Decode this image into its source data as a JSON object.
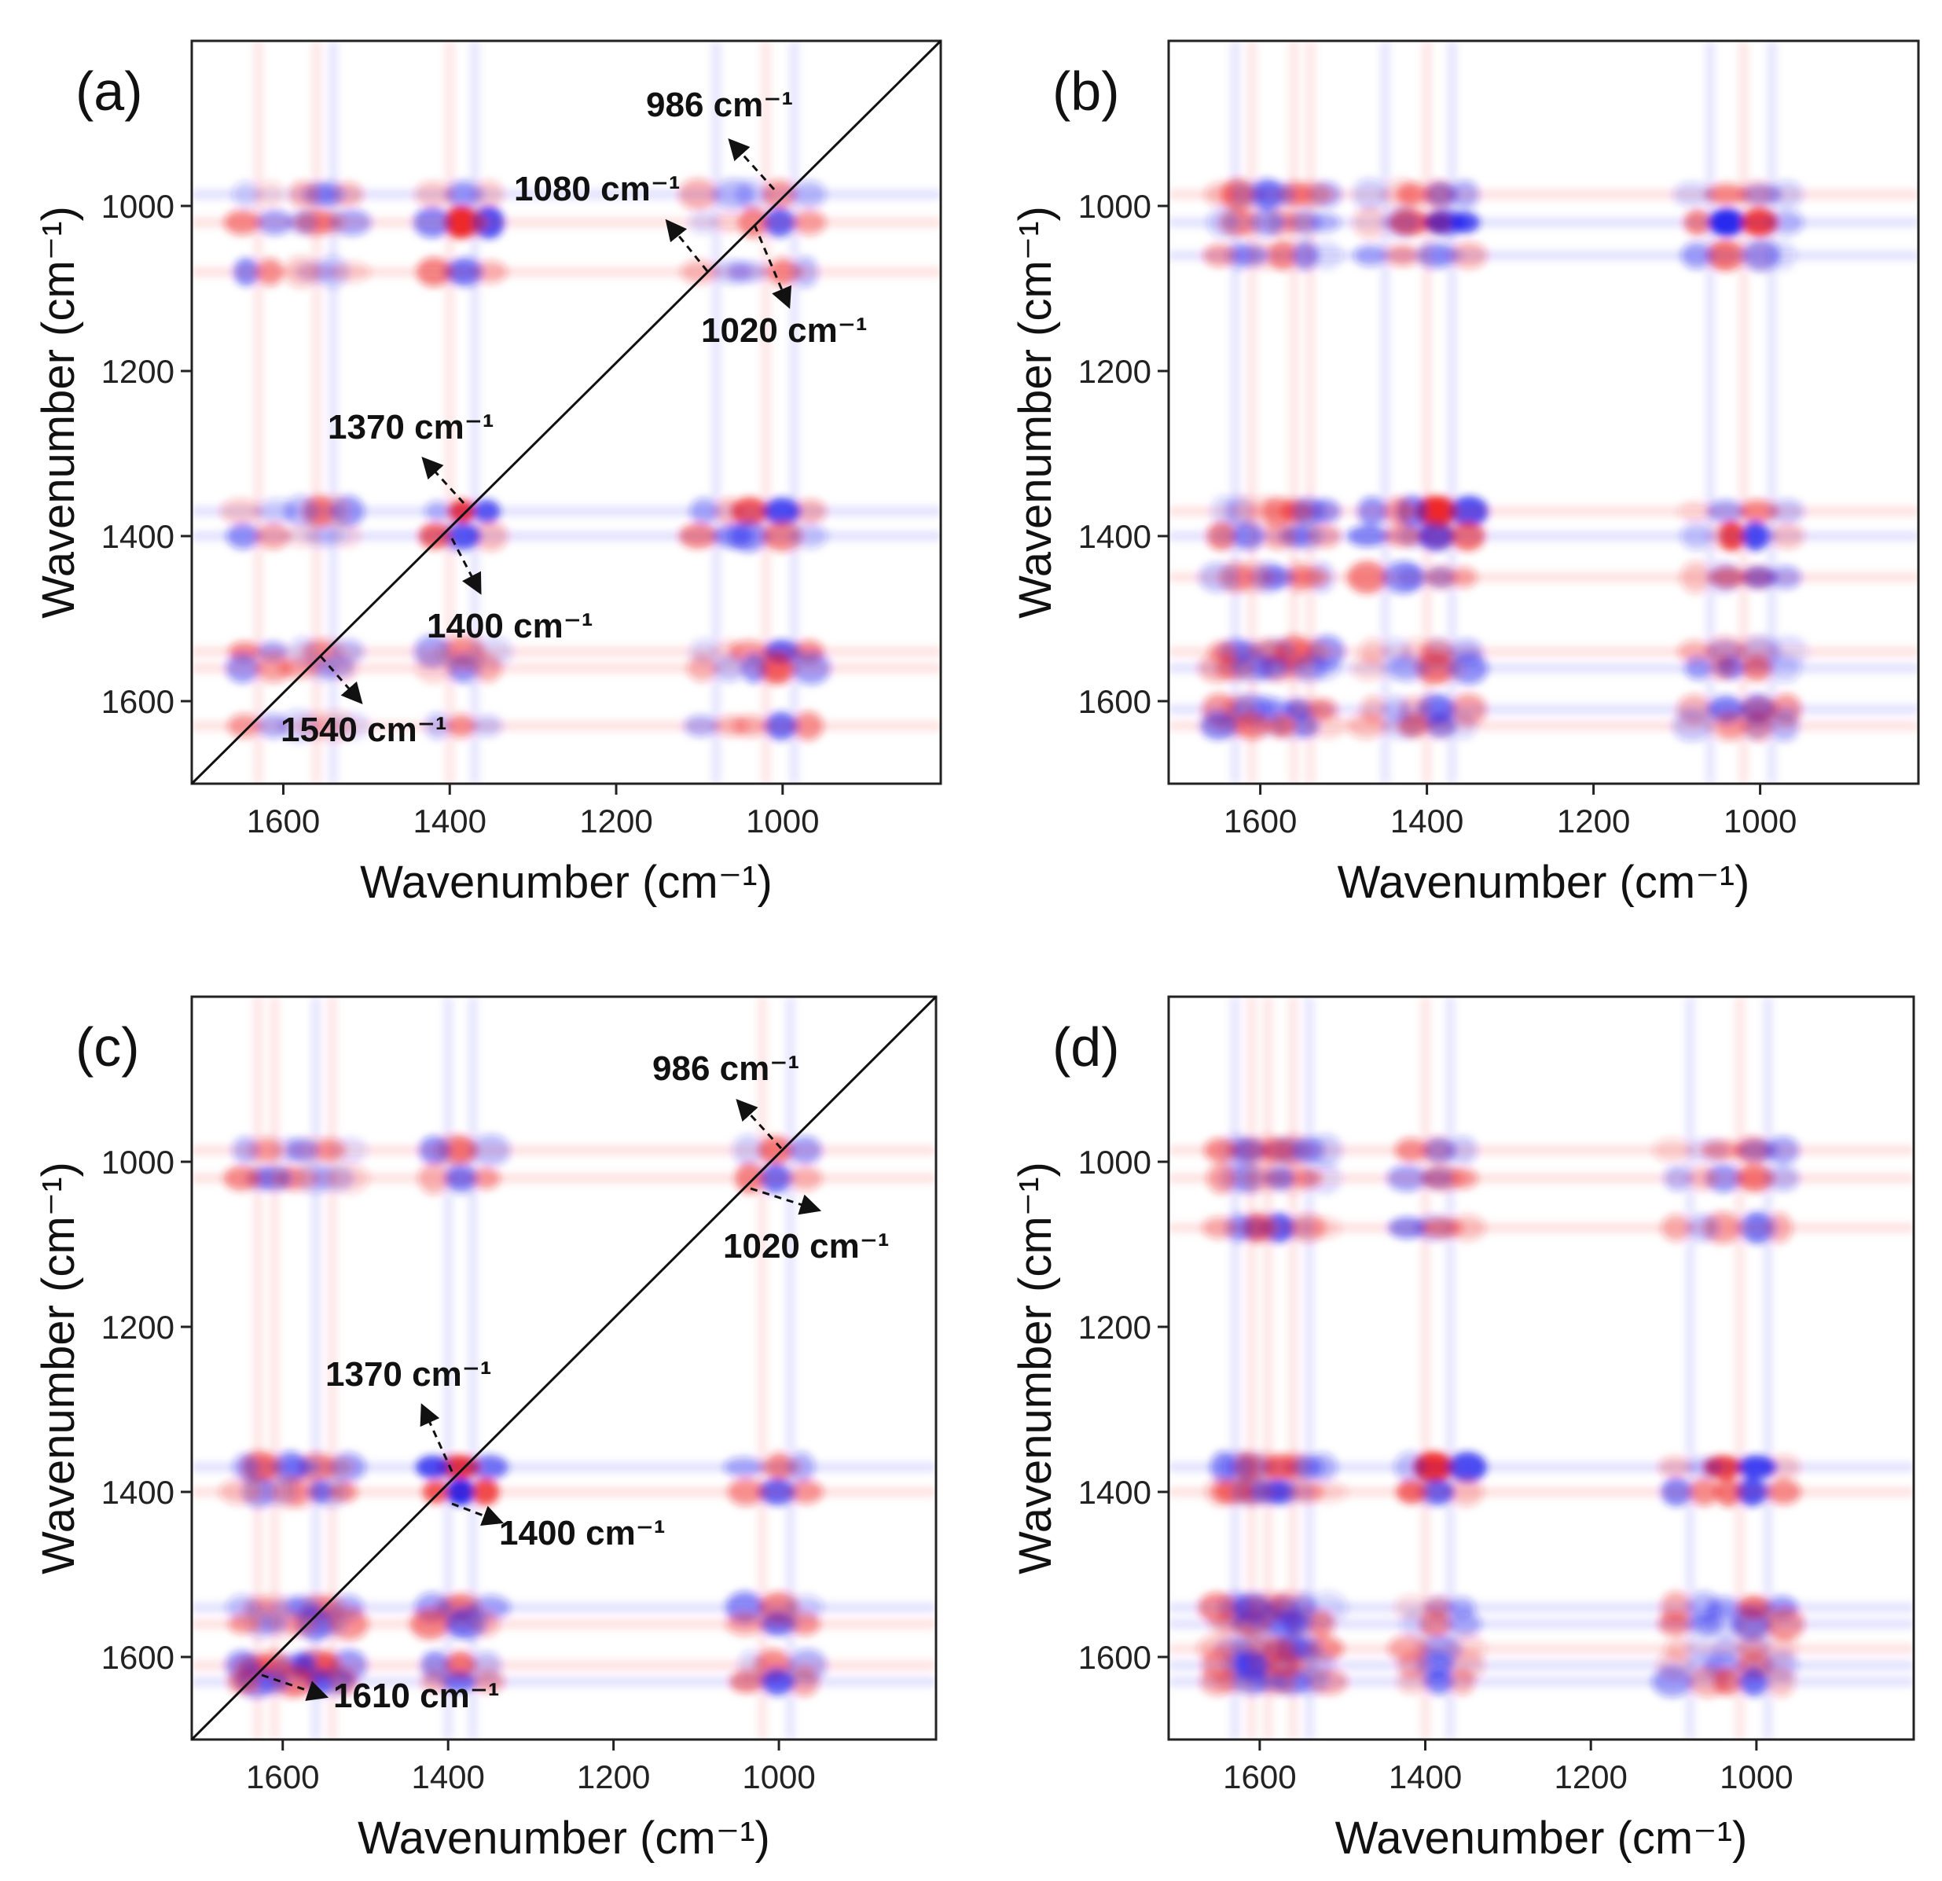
{
  "figure": {
    "panels": 4
  },
  "colors": {
    "positive": "#ee1c1c",
    "negative": "#1c1cee",
    "frame": "#222222",
    "background": "#ffffff"
  },
  "chart_data": [
    {
      "panel": "(a)",
      "type": "heatmap",
      "kind": "2D correlation spectrum (synchronous)",
      "xlabel": "Wavenumber (cm⁻¹)",
      "ylabel": "Wavenumber (cm⁻¹)",
      "xlim": [
        1710,
        810
      ],
      "ylim": [
        800,
        1700
      ],
      "xticks": [
        1600,
        1400,
        1200,
        1000
      ],
      "yticks": [
        1000,
        1200,
        1400,
        1600
      ],
      "diagonal": true,
      "peaks": [
        986,
        1020,
        1080,
        1370,
        1400,
        1540,
        1560,
        1630
      ],
      "annotations": [
        {
          "text": "986 cm⁻¹",
          "wavenumber": 986
        },
        {
          "text": "1080 cm⁻¹",
          "wavenumber": 1080
        },
        {
          "text": "1020 cm⁻¹",
          "wavenumber": 1020
        },
        {
          "text": "1370 cm⁻¹",
          "wavenumber": 1370
        },
        {
          "text": "1400 cm⁻¹",
          "wavenumber": 1400
        },
        {
          "text": "1540 cm⁻¹",
          "wavenumber": 1540
        }
      ]
    },
    {
      "panel": "(b)",
      "type": "heatmap",
      "kind": "2D correlation spectrum (asynchronous)",
      "xlabel": "Wavenumber (cm⁻¹)",
      "ylabel": "Wavenumber (cm⁻¹)",
      "xlim": [
        1710,
        810
      ],
      "ylim": [
        800,
        1700
      ],
      "xticks": [
        1600,
        1400,
        1200,
        1000
      ],
      "yticks": [
        1000,
        1200,
        1400,
        1600
      ],
      "diagonal": false,
      "peaks": [
        986,
        1020,
        1060,
        1370,
        1400,
        1450,
        1540,
        1560,
        1610,
        1630
      ],
      "annotations": []
    },
    {
      "panel": "(c)",
      "type": "heatmap",
      "kind": "2D correlation spectrum (synchronous)",
      "xlabel": "Wavenumber (cm⁻¹)",
      "ylabel": "Wavenumber (cm⁻¹)",
      "xlim": [
        1710,
        810
      ],
      "ylim": [
        800,
        1700
      ],
      "xticks": [
        1600,
        1400,
        1200,
        1000
      ],
      "yticks": [
        1000,
        1200,
        1400,
        1600
      ],
      "diagonal": true,
      "peaks": [
        986,
        1020,
        1370,
        1400,
        1540,
        1560,
        1610,
        1630
      ],
      "annotations": [
        {
          "text": "986 cm⁻¹",
          "wavenumber": 986
        },
        {
          "text": "1020 cm⁻¹",
          "wavenumber": 1020
        },
        {
          "text": "1370 cm⁻¹",
          "wavenumber": 1370
        },
        {
          "text": "1400 cm⁻¹",
          "wavenumber": 1400
        },
        {
          "text": "1610 cm⁻¹",
          "wavenumber": 1610
        }
      ]
    },
    {
      "panel": "(d)",
      "type": "heatmap",
      "kind": "2D correlation spectrum (asynchronous)",
      "xlabel": "Wavenumber (cm⁻¹)",
      "ylabel": "Wavenumber (cm⁻¹)",
      "xlim": [
        1710,
        810
      ],
      "ylim": [
        800,
        1700
      ],
      "xticks": [
        1600,
        1400,
        1200,
        1000
      ],
      "yticks": [
        1000,
        1200,
        1400,
        1600
      ],
      "diagonal": false,
      "peaks": [
        986,
        1020,
        1080,
        1370,
        1400,
        1540,
        1560,
        1590,
        1610,
        1630
      ],
      "annotations": []
    }
  ]
}
